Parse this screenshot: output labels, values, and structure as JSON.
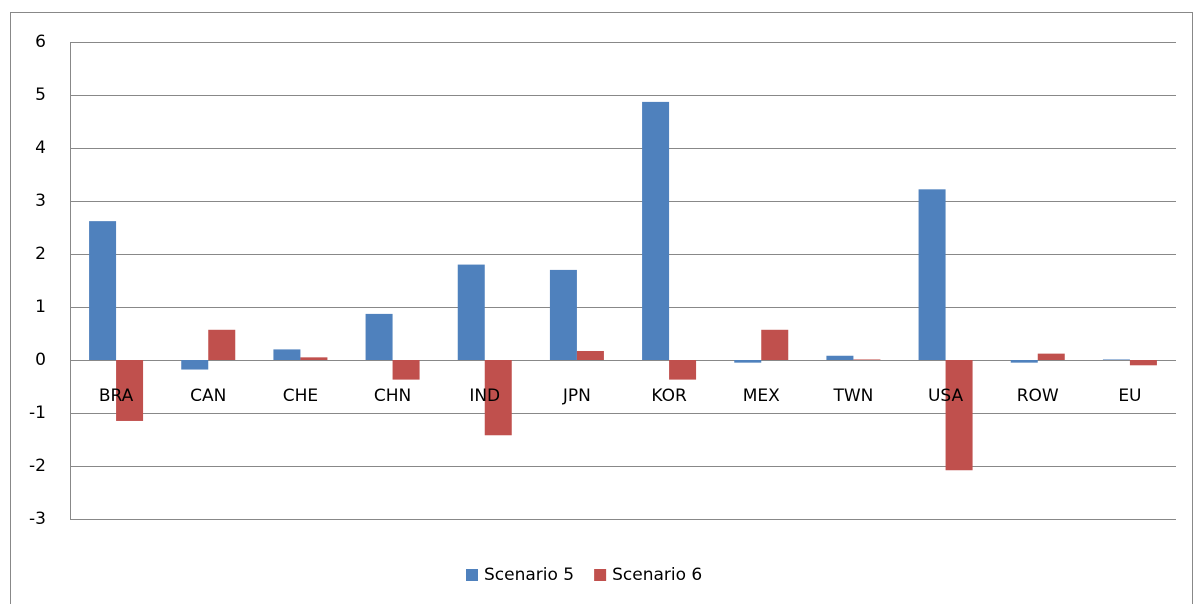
{
  "chart_data": {
    "type": "bar",
    "categories": [
      "BRA",
      "CAN",
      "CHE",
      "CHN",
      "IND",
      "JPN",
      "KOR",
      "MEX",
      "TWN",
      "USA",
      "ROW",
      "EU"
    ],
    "series": [
      {
        "name": "Scenario 5",
        "color": "#4f81bd",
        "values": [
          2.62,
          -0.18,
          0.2,
          0.87,
          1.8,
          1.7,
          4.87,
          -0.05,
          0.08,
          3.22,
          -0.05,
          0.01
        ]
      },
      {
        "name": "Scenario 6",
        "color": "#c0504d",
        "values": [
          -1.15,
          0.57,
          0.05,
          -0.37,
          -1.42,
          0.17,
          -0.37,
          0.57,
          0.01,
          -2.08,
          0.12,
          -0.1
        ]
      }
    ],
    "ylim": [
      -3,
      6
    ],
    "yticks": [
      -3,
      -2,
      -1,
      0,
      1,
      2,
      3,
      4,
      5,
      6
    ],
    "grid": true,
    "legend": "bottom"
  }
}
